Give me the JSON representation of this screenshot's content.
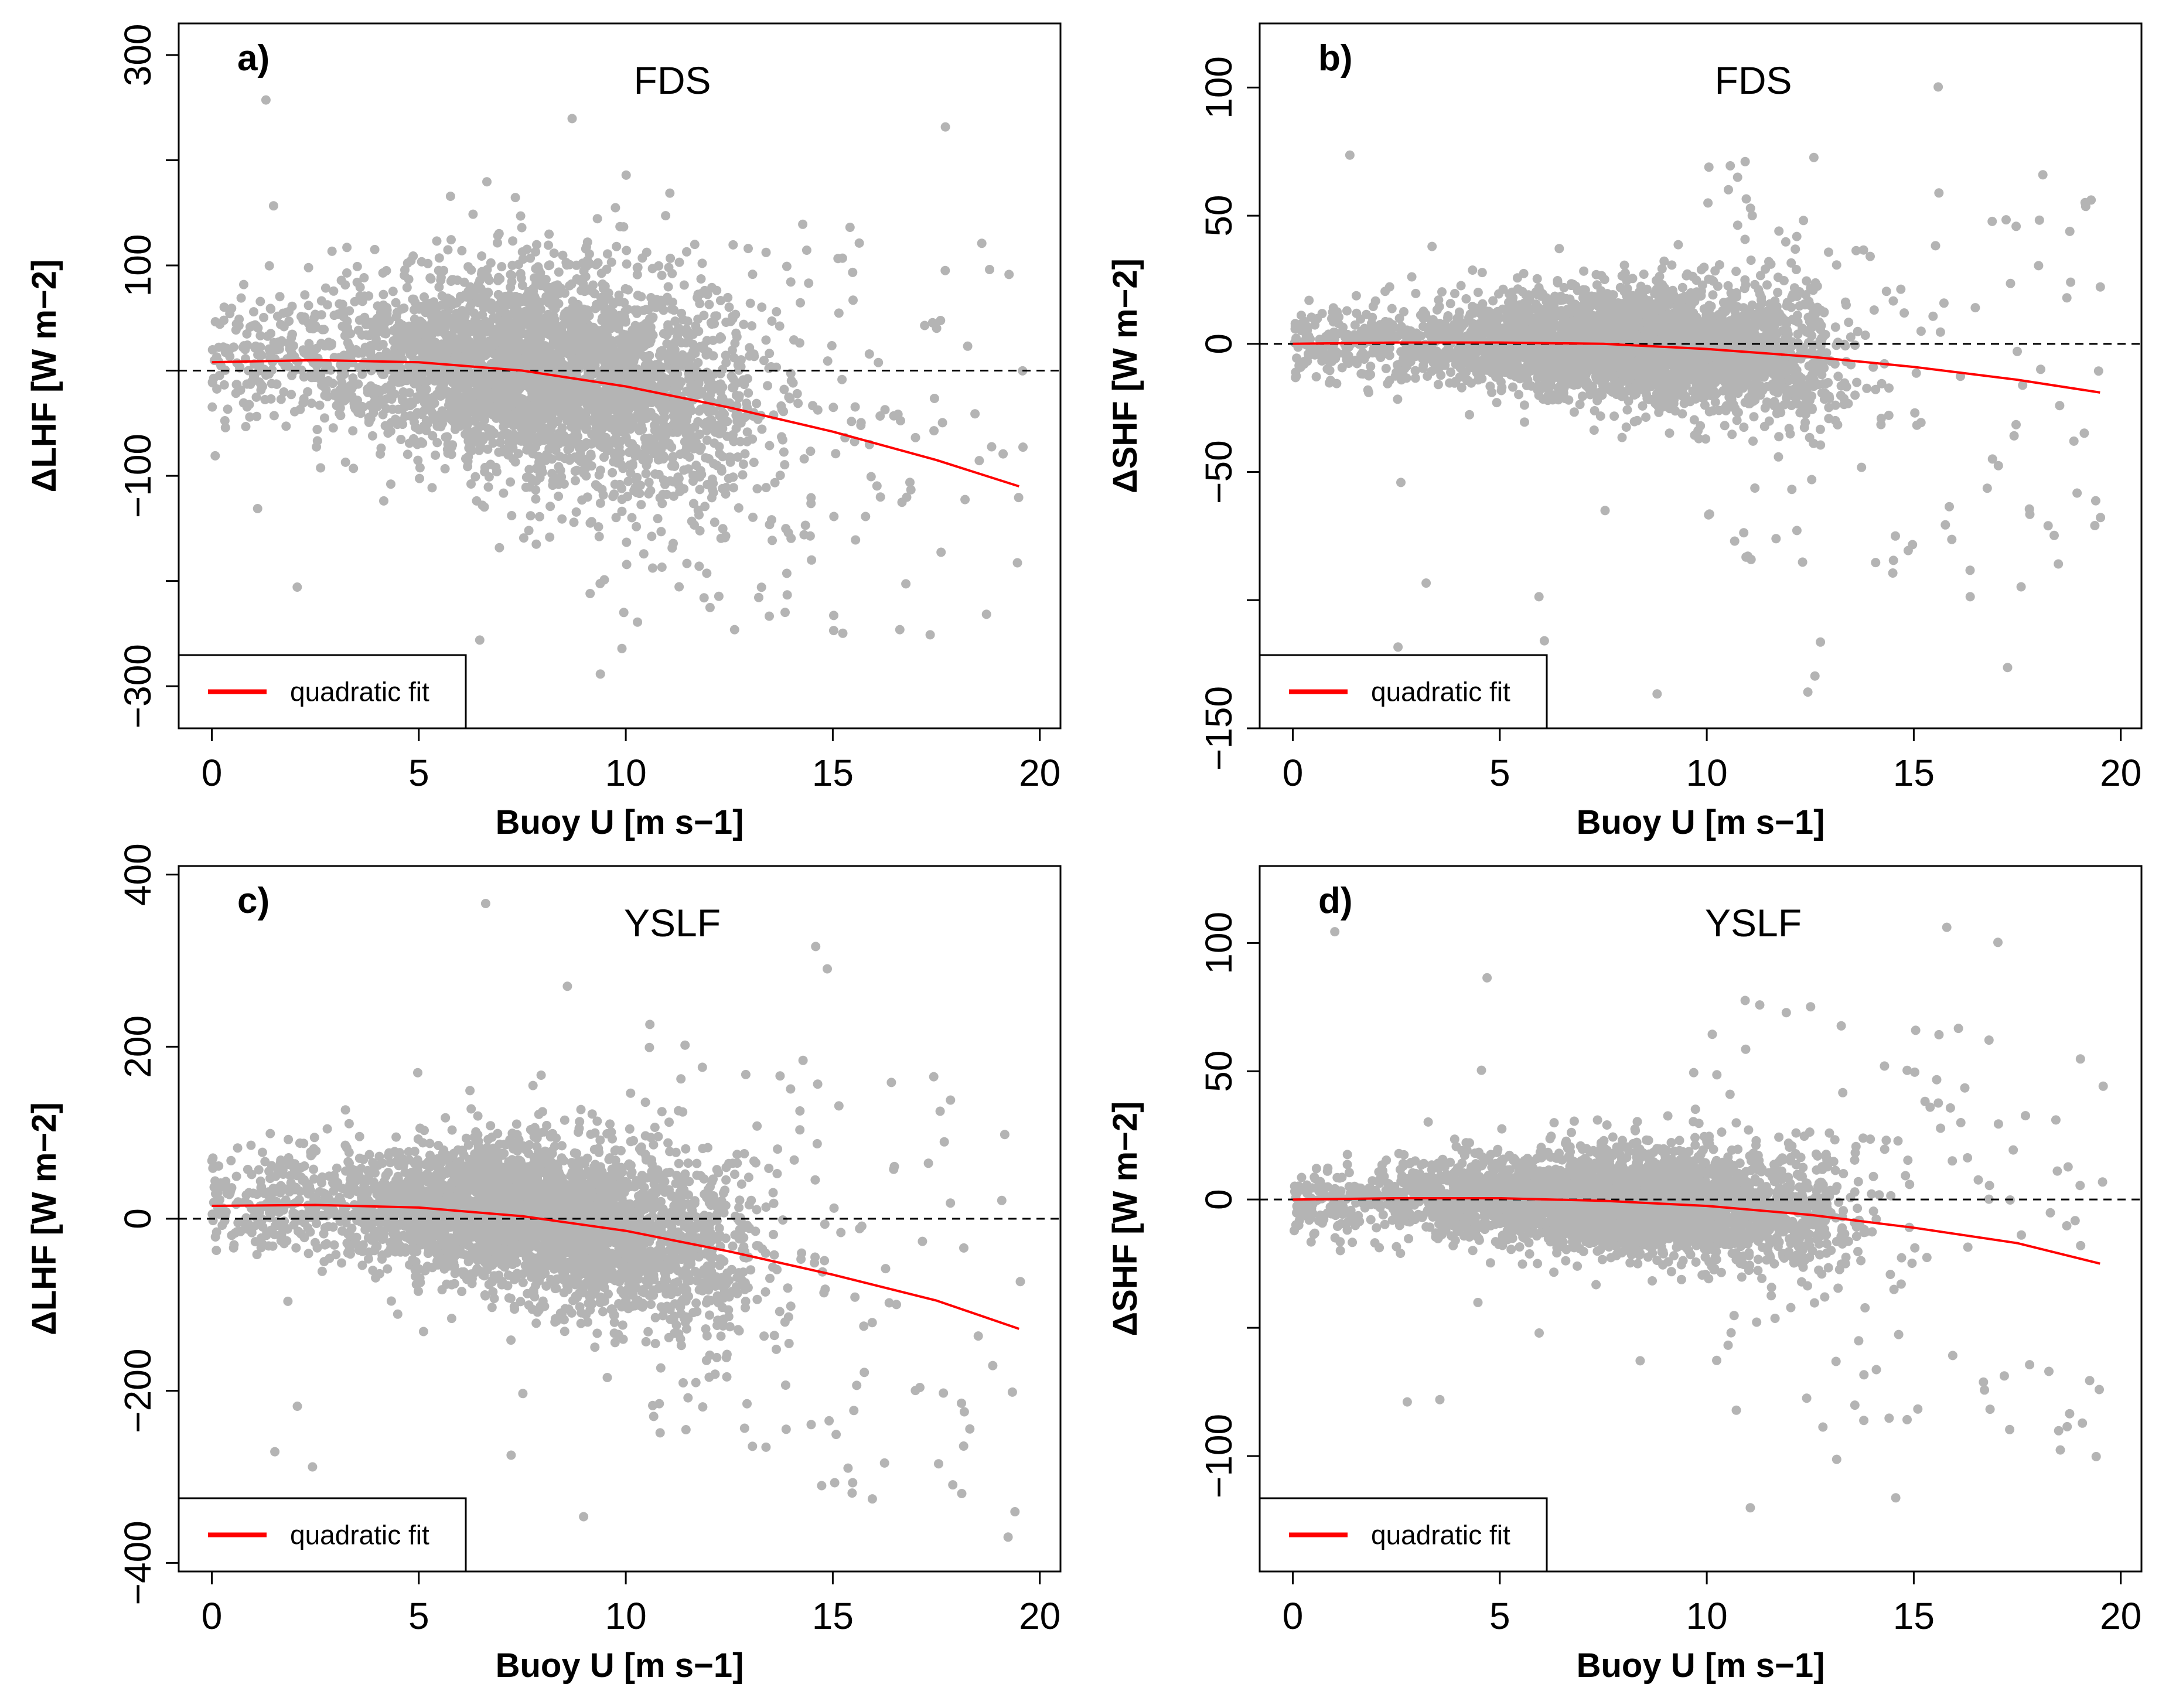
{
  "chart_data": [
    {
      "type": "scatter",
      "panel_label": "a)",
      "title": "FDS",
      "xlabel": "Buoy U [m s−1]",
      "ylabel": "ΔLHF [W m−2]",
      "xlim": [
        -0.8,
        20.5
      ],
      "ylim": [
        -340,
        330
      ],
      "xticks": [
        0,
        5,
        10,
        15,
        20
      ],
      "xtick_labels": [
        "0",
        "5",
        "10",
        "15",
        "20"
      ],
      "yticks": [
        -300,
        -200,
        -100,
        0,
        100,
        200,
        300
      ],
      "ytick_labels": [
        "−300",
        "",
        "−100",
        "",
        "100",
        "",
        "300"
      ],
      "reference_line_y": 0,
      "fit": {
        "label": "quadratic fit",
        "x": [
          0,
          2.5,
          5,
          7.5,
          10,
          12.5,
          15,
          17.5,
          19.5
        ],
        "y": [
          8,
          10,
          8,
          0,
          -15,
          -35,
          -58,
          -85,
          -110
        ]
      },
      "scatter": {
        "core_spread": 55,
        "outlier_range": [
          -310,
          315
        ],
        "point_color": "#b4b4b4"
      },
      "legend": {
        "position": "bottom-left",
        "entry": "quadratic fit",
        "color": "#ff0000"
      }
    },
    {
      "type": "scatter",
      "panel_label": "b)",
      "title": "FDS",
      "xlabel": "Buoy U [m s−1]",
      "ylabel": "ΔSHF [W m−2]",
      "xlim": [
        -0.8,
        20.5
      ],
      "ylim": [
        -150,
        125
      ],
      "xticks": [
        0,
        5,
        10,
        15,
        20
      ],
      "xtick_labels": [
        "0",
        "5",
        "10",
        "15",
        "20"
      ],
      "yticks": [
        -150,
        -100,
        -50,
        0,
        50,
        100
      ],
      "ytick_labels": [
        "−150",
        "",
        "−50",
        "0",
        "50",
        "100"
      ],
      "reference_line_y": 0,
      "fit": {
        "label": "quadratic fit",
        "x": [
          0,
          2.5,
          5,
          7.5,
          10,
          12.5,
          15,
          17.5,
          19.5
        ],
        "y": [
          0,
          0.5,
          0.5,
          0,
          -2,
          -5,
          -9,
          -14,
          -19
        ]
      },
      "scatter": {
        "core_spread": 12,
        "outlier_range": [
          -140,
          115
        ],
        "point_color": "#b4b4b4"
      },
      "legend": {
        "position": "bottom-left",
        "entry": "quadratic fit",
        "color": "#ff0000"
      }
    },
    {
      "type": "scatter",
      "panel_label": "c)",
      "title": "YSLF",
      "xlabel": "Buoy U [m s−1]",
      "ylabel": "ΔLHF [W m−2]",
      "xlim": [
        -0.8,
        20.5
      ],
      "ylim": [
        -410,
        410
      ],
      "xticks": [
        0,
        5,
        10,
        15,
        20
      ],
      "xtick_labels": [
        "0",
        "5",
        "10",
        "15",
        "20"
      ],
      "yticks": [
        -400,
        -200,
        0,
        200,
        400
      ],
      "ytick_labels": [
        "−400",
        "−200",
        "0",
        "200",
        "400"
      ],
      "reference_line_y": 0,
      "fit": {
        "label": "quadratic fit",
        "x": [
          0,
          2.5,
          5,
          7.5,
          10,
          12.5,
          15,
          17.5,
          19.5
        ],
        "y": [
          15,
          16,
          13,
          3,
          -14,
          -38,
          -65,
          -95,
          -128
        ]
      },
      "scatter": {
        "core_spread": 50,
        "outlier_range": [
          -380,
          400
        ],
        "point_color": "#b4b4b4"
      },
      "legend": {
        "position": "bottom-left",
        "entry": "quadratic fit",
        "color": "#ff0000"
      }
    },
    {
      "type": "scatter",
      "panel_label": "d)",
      "title": "YSLF",
      "xlabel": "Buoy U [m s−1]",
      "ylabel": "ΔSHF [W m−2]",
      "xlim": [
        -0.8,
        20.5
      ],
      "ylim": [
        -145,
        130
      ],
      "xticks": [
        0,
        5,
        10,
        15,
        20
      ],
      "xtick_labels": [
        "0",
        "5",
        "10",
        "15",
        "20"
      ],
      "yticks": [
        -100,
        -50,
        0,
        50,
        100
      ],
      "ytick_labels": [
        "−100",
        "",
        "0",
        "50",
        "100"
      ],
      "reference_line_y": 0,
      "fit": {
        "label": "quadratic fit",
        "x": [
          0,
          2.5,
          5,
          7.5,
          10,
          12.5,
          15,
          17.5,
          19.5
        ],
        "y": [
          0,
          0.5,
          0.5,
          -0.5,
          -2.5,
          -6,
          -11,
          -17,
          -25
        ]
      },
      "scatter": {
        "core_spread": 11,
        "outlier_range": [
          -135,
          125
        ],
        "point_color": "#b4b4b4"
      },
      "legend": {
        "position": "bottom-left",
        "entry": "quadratic fit",
        "color": "#ff0000"
      }
    }
  ]
}
